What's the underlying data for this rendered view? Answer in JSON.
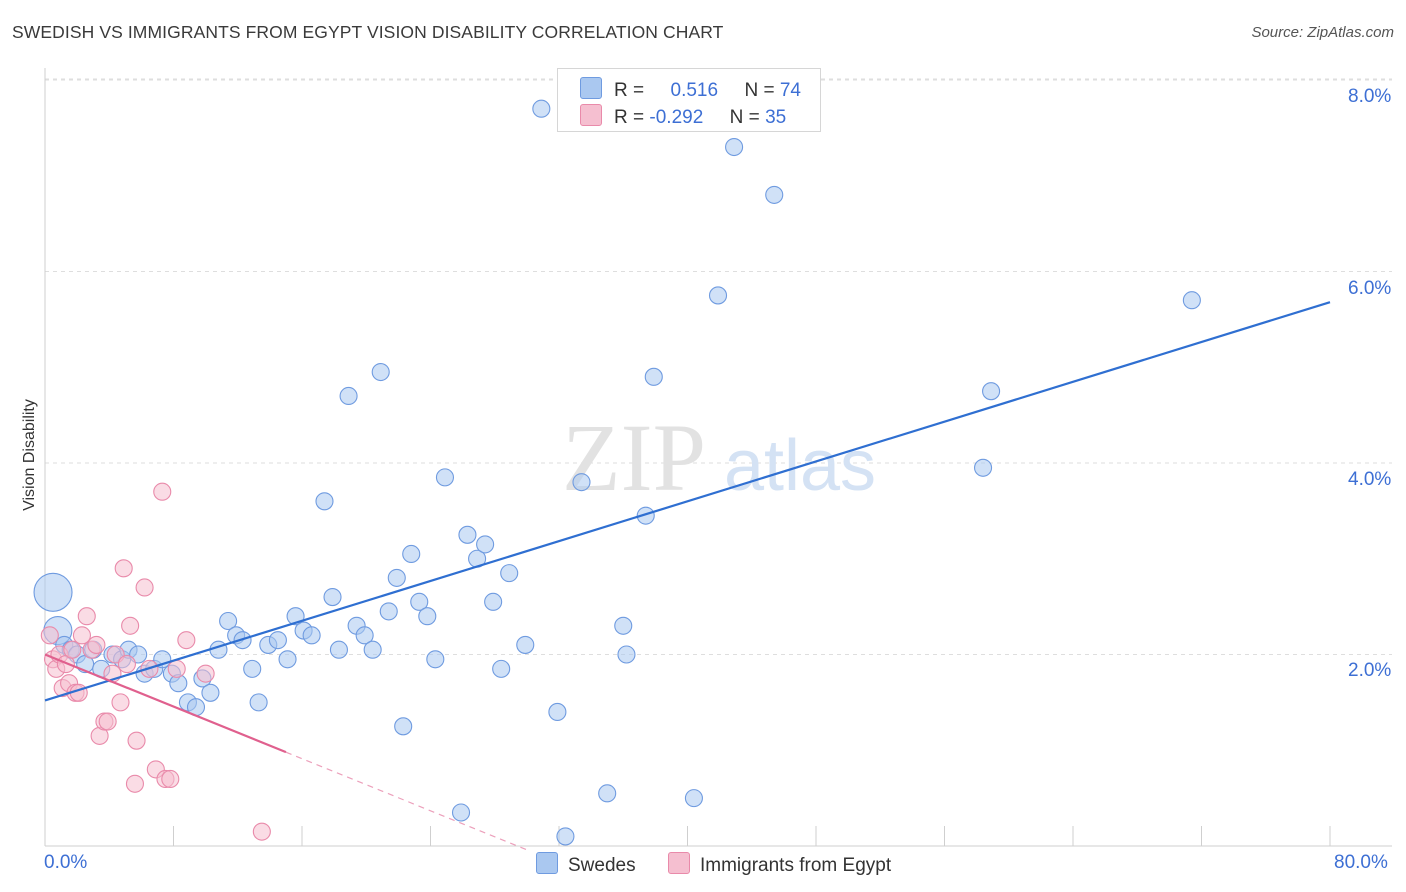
{
  "chart_data": {
    "type": "scatter",
    "title": "SWEDISH VS IMMIGRANTS FROM EGYPT VISION DISABILITY CORRELATION CHART",
    "source": "Source: ZipAtlas.com",
    "xlabel": "",
    "ylabel": "Vision Disability",
    "xlim": [
      0,
      80
    ],
    "ylim": [
      0,
      8.3
    ],
    "x_tick_labels": [
      "0.0%",
      "80.0%"
    ],
    "y_ticks": [
      2,
      4,
      6,
      8
    ],
    "y_tick_labels": [
      "2.0%",
      "4.0%",
      "6.0%",
      "8.0%"
    ],
    "grid": true,
    "watermark": "ZIPatlas",
    "legend": {
      "rows": [
        {
          "r_label": "R =",
          "r_value": "0.516",
          "n_label": "N =",
          "n_value": "74"
        },
        {
          "r_label": "R =",
          "r_value": "-0.292",
          "n_label": "N =",
          "n_value": "35"
        }
      ]
    },
    "series": [
      {
        "name": "Swedes",
        "color": "#6f9be0",
        "fill": "#aac8f0",
        "trend": {
          "x0": 0,
          "y0": 1.52,
          "x1": 80,
          "y1": 5.68,
          "color": "#2f6fd1"
        },
        "points": [
          [
            0.5,
            2.65,
            3
          ],
          [
            0.8,
            2.25,
            2
          ],
          [
            1.2,
            2.1,
            1
          ],
          [
            1.6,
            2.05,
            1
          ],
          [
            2.0,
            2.0,
            1
          ],
          [
            2.5,
            1.9,
            1
          ],
          [
            3.0,
            2.05,
            1
          ],
          [
            3.5,
            1.85,
            1
          ],
          [
            4.2,
            2.0,
            1
          ],
          [
            4.8,
            1.95,
            1
          ],
          [
            5.2,
            2.05,
            1
          ],
          [
            5.8,
            2.0,
            1
          ],
          [
            6.2,
            1.8,
            1
          ],
          [
            6.8,
            1.85,
            1
          ],
          [
            7.3,
            1.95,
            1
          ],
          [
            7.9,
            1.8,
            1
          ],
          [
            8.3,
            1.7,
            1
          ],
          [
            8.9,
            1.5,
            1
          ],
          [
            9.4,
            1.45,
            1
          ],
          [
            9.8,
            1.75,
            1
          ],
          [
            10.3,
            1.6,
            1
          ],
          [
            10.8,
            2.05,
            1
          ],
          [
            11.4,
            2.35,
            1
          ],
          [
            11.9,
            2.2,
            1
          ],
          [
            12.3,
            2.15,
            1
          ],
          [
            12.9,
            1.85,
            1
          ],
          [
            13.3,
            1.5,
            1
          ],
          [
            13.9,
            2.1,
            1
          ],
          [
            14.5,
            2.15,
            1
          ],
          [
            15.1,
            1.95,
            1
          ],
          [
            15.6,
            2.4,
            1
          ],
          [
            16.1,
            2.25,
            1
          ],
          [
            16.6,
            2.2,
            1
          ],
          [
            17.4,
            3.6,
            1
          ],
          [
            17.9,
            2.6,
            1
          ],
          [
            18.3,
            2.05,
            1
          ],
          [
            18.9,
            4.7,
            1
          ],
          [
            19.4,
            2.3,
            1
          ],
          [
            19.9,
            2.2,
            1
          ],
          [
            20.4,
            2.05,
            1
          ],
          [
            20.9,
            4.95,
            1
          ],
          [
            21.4,
            2.45,
            1
          ],
          [
            21.9,
            2.8,
            1
          ],
          [
            22.3,
            1.25,
            1
          ],
          [
            22.8,
            3.05,
            1
          ],
          [
            23.3,
            2.55,
            1
          ],
          [
            23.8,
            2.4,
            1
          ],
          [
            24.3,
            1.95,
            1
          ],
          [
            24.9,
            3.85,
            1
          ],
          [
            25.9,
            0.35,
            1
          ],
          [
            26.3,
            3.25,
            1
          ],
          [
            26.9,
            3.0,
            1
          ],
          [
            27.4,
            3.15,
            1
          ],
          [
            27.9,
            2.55,
            1
          ],
          [
            28.4,
            1.85,
            1
          ],
          [
            28.9,
            2.85,
            1
          ],
          [
            29.9,
            2.1,
            1
          ],
          [
            30.9,
            7.7,
            1
          ],
          [
            31.9,
            1.4,
            1
          ],
          [
            32.4,
            0.1,
            1
          ],
          [
            33.4,
            3.8,
            1
          ],
          [
            35.0,
            0.55,
            1
          ],
          [
            36.0,
            2.3,
            1
          ],
          [
            36.2,
            2.0,
            1
          ],
          [
            37.4,
            3.45,
            1
          ],
          [
            37.9,
            4.9,
            1
          ],
          [
            40.4,
            0.5,
            1
          ],
          [
            41.9,
            5.75,
            1
          ],
          [
            42.9,
            7.3,
            1
          ],
          [
            45.4,
            6.8,
            1
          ],
          [
            58.4,
            3.95,
            1
          ],
          [
            58.9,
            4.75,
            1
          ],
          [
            71.4,
            5.7,
            1
          ]
        ]
      },
      {
        "name": "Immigrants from Egypt",
        "color": "#e98aaa",
        "fill": "#f5bfd0",
        "trend": {
          "x0": 0,
          "y0": 2.0,
          "x1": 15,
          "y1": 0.98,
          "color": "#e0608e"
        },
        "trend_dashed": {
          "x0": 15,
          "y0": 0.98,
          "x1": 30,
          "y1": -0.04
        },
        "points": [
          [
            0.3,
            2.2,
            1
          ],
          [
            0.5,
            1.95,
            1
          ],
          [
            0.7,
            1.85,
            1
          ],
          [
            0.9,
            2.0,
            1
          ],
          [
            1.1,
            1.65,
            1
          ],
          [
            1.3,
            1.9,
            1
          ],
          [
            1.5,
            1.7,
            1
          ],
          [
            1.7,
            2.05,
            1
          ],
          [
            1.9,
            1.6,
            1
          ],
          [
            2.1,
            1.6,
            1
          ],
          [
            2.3,
            2.2,
            1
          ],
          [
            2.6,
            2.4,
            1
          ],
          [
            2.9,
            2.05,
            1
          ],
          [
            3.2,
            2.1,
            1
          ],
          [
            3.4,
            1.15,
            1
          ],
          [
            3.7,
            1.3,
            1
          ],
          [
            3.9,
            1.3,
            1
          ],
          [
            4.2,
            1.8,
            1
          ],
          [
            4.4,
            2.0,
            1
          ],
          [
            4.7,
            1.5,
            1
          ],
          [
            4.9,
            2.9,
            1
          ],
          [
            5.1,
            1.9,
            1
          ],
          [
            5.3,
            2.3,
            1
          ],
          [
            5.6,
            0.65,
            1
          ],
          [
            5.7,
            1.1,
            1
          ],
          [
            6.2,
            2.7,
            1
          ],
          [
            6.5,
            1.85,
            1
          ],
          [
            6.9,
            0.8,
            1
          ],
          [
            7.3,
            3.7,
            1
          ],
          [
            7.5,
            0.7,
            1
          ],
          [
            7.8,
            0.7,
            1
          ],
          [
            8.2,
            1.85,
            1
          ],
          [
            8.8,
            2.15,
            1
          ],
          [
            10.0,
            1.8,
            1
          ],
          [
            13.5,
            0.15,
            1
          ]
        ]
      }
    ]
  },
  "legend_bottom": [
    "Swedes",
    "Immigrants from Egypt"
  ]
}
